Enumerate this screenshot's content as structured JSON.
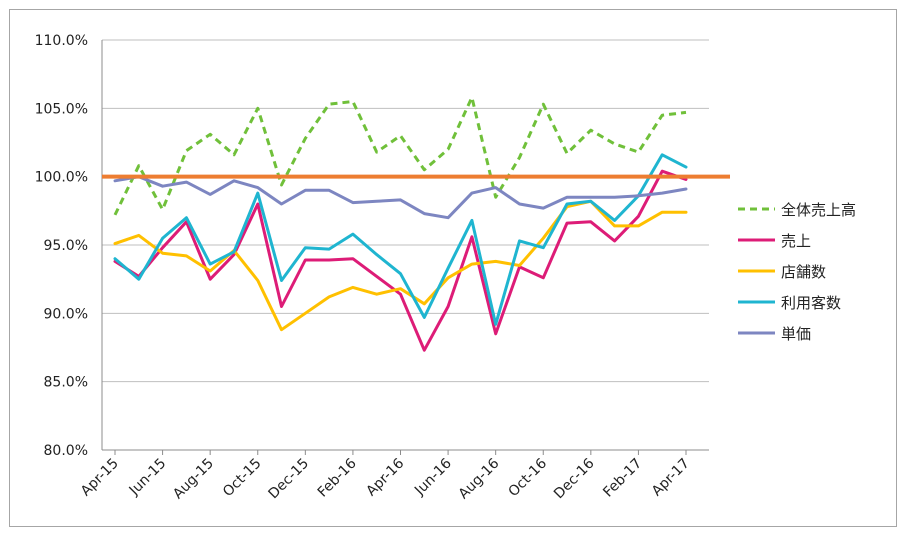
{
  "chart_data": {
    "type": "line",
    "title": "",
    "xlabel": "",
    "ylabel": "",
    "ylim": [
      80,
      110
    ],
    "yticks": [
      "80.0%",
      "85.0%",
      "90.0%",
      "95.0%",
      "100.0%",
      "105.0%",
      "110.0%"
    ],
    "grid": "horizontal",
    "legend_position": "right",
    "categories": [
      "Apr-15",
      "May-15",
      "Jun-15",
      "Jul-15",
      "Aug-15",
      "Sep-15",
      "Oct-15",
      "Nov-15",
      "Dec-15",
      "Jan-16",
      "Feb-16",
      "Mar-16",
      "Apr-16",
      "May-16",
      "Jun-16",
      "Jul-16",
      "Aug-16",
      "Sep-16",
      "Oct-16",
      "Nov-16",
      "Dec-16",
      "Jan-17",
      "Feb-17",
      "Mar-17",
      "Apr-17"
    ],
    "xtick_labels": [
      "Apr-15",
      "Jun-15",
      "Aug-15",
      "Oct-15",
      "Dec-15",
      "Feb-16",
      "Apr-16",
      "Jun-16",
      "Aug-16",
      "Oct-16",
      "Dec-16",
      "Feb-17",
      "Apr-17"
    ],
    "reference_line": {
      "value": 100,
      "color": "#ED7D31"
    },
    "series": [
      {
        "name": "全体売上高",
        "color": "#70C03A",
        "dash": true,
        "values": [
          97.2,
          100.8,
          97.6,
          101.9,
          103.1,
          101.6,
          105.0,
          99.4,
          102.8,
          105.3,
          105.5,
          101.8,
          103.0,
          100.5,
          102.0,
          105.8,
          98.5,
          101.4,
          105.3,
          101.7,
          103.4,
          102.4,
          101.8,
          104.5,
          104.7
        ]
      },
      {
        "name": "売上",
        "color": "#DD1C77",
        "dash": false,
        "values": [
          93.8,
          92.7,
          94.8,
          96.7,
          92.5,
          94.3,
          98.0,
          90.5,
          93.9,
          93.9,
          94.0,
          92.7,
          91.4,
          87.3,
          90.5,
          95.6,
          88.5,
          93.4,
          92.6,
          96.6,
          96.7,
          95.3,
          97.1,
          100.4,
          99.8
        ]
      },
      {
        "name": "店舗数",
        "color": "#FFC000",
        "dash": false,
        "values": [
          95.1,
          95.7,
          94.4,
          94.2,
          93.1,
          94.6,
          92.4,
          88.8,
          90.0,
          91.2,
          91.9,
          91.4,
          91.8,
          90.7,
          92.6,
          93.6,
          93.8,
          93.5,
          95.5,
          97.8,
          98.2,
          96.4,
          96.4,
          97.4,
          97.4
        ]
      },
      {
        "name": "利用客数",
        "color": "#1FB5D0",
        "dash": false,
        "values": [
          94.0,
          92.5,
          95.5,
          97.0,
          93.6,
          94.5,
          98.8,
          92.4,
          94.8,
          94.7,
          95.8,
          94.3,
          92.9,
          89.7,
          93.3,
          96.8,
          89.2,
          95.3,
          94.8,
          98.0,
          98.2,
          96.8,
          98.6,
          101.6,
          100.7
        ]
      },
      {
        "name": "単価",
        "color": "#7D86C1",
        "dash": false,
        "values": [
          99.7,
          100.0,
          99.3,
          99.6,
          98.7,
          99.7,
          99.2,
          98.0,
          99.0,
          99.0,
          98.1,
          98.2,
          98.3,
          97.3,
          97.0,
          98.8,
          99.2,
          98.0,
          97.7,
          98.5,
          98.5,
          98.5,
          98.6,
          98.8,
          99.1
        ]
      }
    ]
  }
}
